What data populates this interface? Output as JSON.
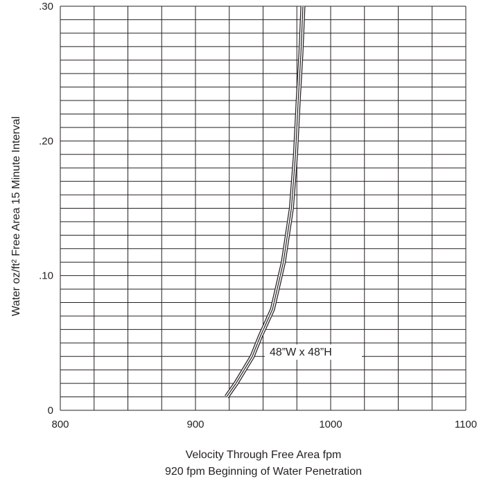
{
  "chart_data": {
    "type": "line",
    "title": "",
    "xlabel": "Velocity Through Free Area fpm",
    "xlabel2": "920 fpm Beginning of Water Penetration",
    "ylabel": "Water oz/ft² Free Area 15 Minute Interval",
    "xlim": [
      800,
      1100
    ],
    "ylim": [
      0,
      0.3
    ],
    "x_ticks": [
      800,
      900,
      1000,
      1100
    ],
    "x_tick_labels": [
      "800",
      "900",
      "1000",
      "1100"
    ],
    "y_ticks": [
      0,
      0.1,
      0.2,
      0.3
    ],
    "y_tick_labels": [
      "0",
      ".10",
      ".20",
      ".30"
    ],
    "grid": true,
    "grid_x_step": 25,
    "grid_y_step": 0.01,
    "annotation": "48”W x 48”H",
    "series": [
      {
        "name": "",
        "color": "#231f20",
        "x": [
          923,
          930,
          942,
          948,
          957,
          965,
          971,
          974,
          976,
          978,
          979.5
        ],
        "y": [
          0.01,
          0.02,
          0.04,
          0.055,
          0.075,
          0.11,
          0.15,
          0.19,
          0.23,
          0.265,
          0.3
        ]
      }
    ]
  }
}
